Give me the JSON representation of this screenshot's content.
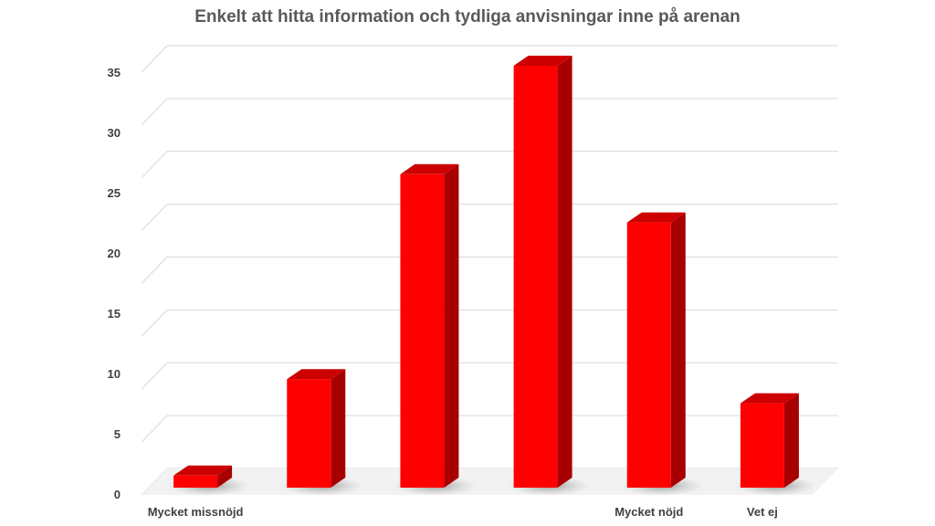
{
  "chart_data": {
    "type": "bar",
    "title": "Enkelt att hitta information och tydliga anvisningar inne på arenan",
    "categories": [
      "Mycket missnöjd",
      "",
      "",
      "",
      "Mycket nöjd",
      "Vet ej"
    ],
    "values": [
      1,
      9,
      26,
      35,
      22,
      7
    ],
    "ylim": [
      0,
      35
    ],
    "yticks": [
      0,
      5,
      10,
      15,
      20,
      25,
      30,
      35
    ],
    "grid": true,
    "legend": "none",
    "style": "3d-column",
    "colors": {
      "front": "#ff0000",
      "side": "#a80000",
      "top": "#cc0000",
      "grid": "#d9d9d9"
    }
  }
}
